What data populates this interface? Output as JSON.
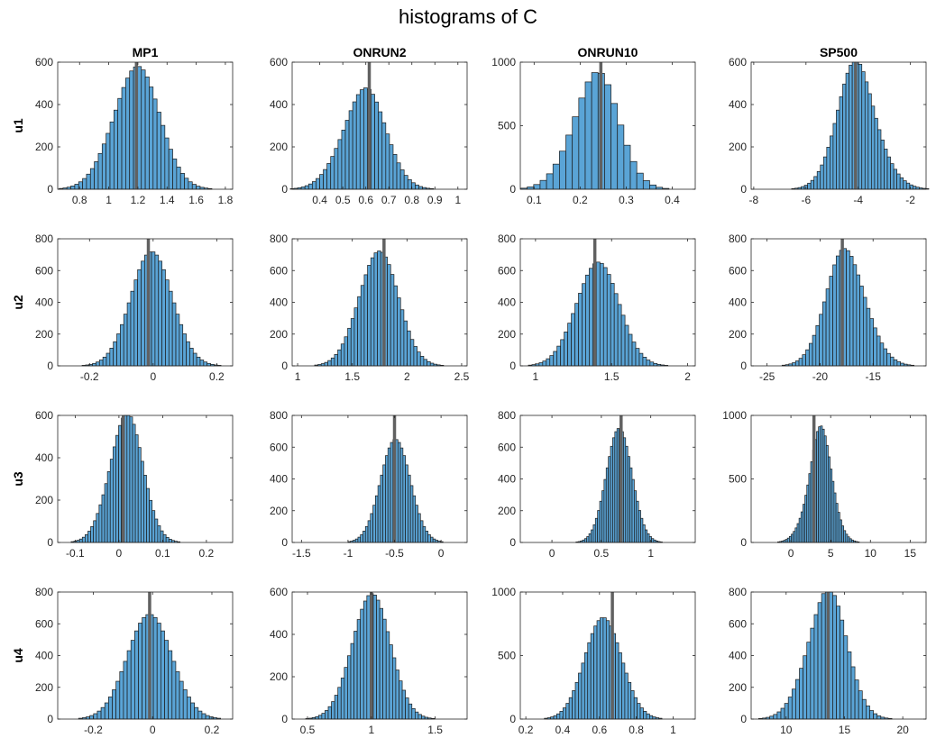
{
  "figure": {
    "title": "histograms of C"
  },
  "chart_data": {
    "type": "bar",
    "title": "histograms of C",
    "columns": [
      "MP1",
      "ONRUN2",
      "ONRUN10",
      "SP500"
    ],
    "rows": [
      "u1",
      "u2",
      "u3",
      "u4"
    ],
    "colors": {
      "bar": "#5aa4d6",
      "edge": "#1b1b1b",
      "marker": "#616161",
      "axis": "#262626"
    },
    "grid": false,
    "panels": [
      {
        "row": "u1",
        "column": "MP1",
        "xlim": [
          0.65,
          1.85
        ],
        "ylim": [
          0,
          600
        ],
        "xticks": [
          0.8,
          1,
          1.2,
          1.4,
          1.6,
          1.8
        ],
        "xticklabels": [
          "0.8",
          "1",
          "1.2",
          "1.4",
          "1.6",
          "1.8"
        ],
        "yticks": [
          0,
          200,
          400,
          600
        ],
        "yticklabels": [
          "0",
          "200",
          "400",
          "600"
        ],
        "mean": 1.17,
        "sd": 0.16,
        "skew": 0.2,
        "peak": 570,
        "bins": 50,
        "marker": 1.19
      },
      {
        "row": "u1",
        "column": "ONRUN2",
        "xlim": [
          0.28,
          1.04
        ],
        "ylim": [
          0,
          600
        ],
        "xticks": [
          0.4,
          0.5,
          0.6,
          0.7,
          0.8,
          0.9,
          1
        ],
        "xticklabels": [
          "0.4",
          "0.5",
          "0.6",
          "0.7",
          "0.8",
          "0.9",
          "1"
        ],
        "yticks": [
          0,
          200,
          400,
          600
        ],
        "yticklabels": [
          "0",
          "200",
          "400",
          "600"
        ],
        "mean": 0.575,
        "sd": 0.095,
        "skew": 0.3,
        "peak": 460,
        "bins": 50,
        "marker": 0.615
      },
      {
        "row": "u1",
        "column": "ONRUN10",
        "xlim": [
          0.07,
          0.45
        ],
        "ylim": [
          0,
          1000
        ],
        "xticks": [
          0.1,
          0.2,
          0.3,
          0.4
        ],
        "xticklabels": [
          "0.1",
          "0.2",
          "0.3",
          "0.4"
        ],
        "yticks": [
          0,
          500,
          1000
        ],
        "yticklabels": [
          "0",
          "500",
          "1000"
        ],
        "mean": 0.225,
        "sd": 0.05,
        "skew": 0.3,
        "peak": 890,
        "bins": 30,
        "marker": 0.245
      },
      {
        "row": "u1",
        "column": "SP500",
        "xlim": [
          -8.1,
          -1.4
        ],
        "ylim": [
          0,
          600
        ],
        "xticks": [
          -8,
          -6,
          -4,
          -2
        ],
        "xticklabels": [
          "-8",
          "-6",
          "-4",
          "-2"
        ],
        "yticks": [
          0,
          200,
          400,
          600
        ],
        "yticklabels": [
          "0",
          "200",
          "400",
          "600"
        ],
        "mean": -3.8,
        "sd": 0.8,
        "skew": -0.5,
        "peak": 555,
        "bins": 55,
        "marker": -4.1
      },
      {
        "row": "u2",
        "column": "MP1",
        "xlim": [
          -0.3,
          0.25
        ],
        "ylim": [
          0,
          800
        ],
        "xticks": [
          -0.2,
          0,
          0.2
        ],
        "xticklabels": [
          "-0.2",
          "0",
          "0.2"
        ],
        "yticks": [
          0,
          200,
          400,
          600,
          800
        ],
        "yticklabels": [
          "0",
          "200",
          "400",
          "600",
          "800"
        ],
        "mean": -0.005,
        "sd": 0.065,
        "skew": 0,
        "peak": 720,
        "bins": 50,
        "marker": -0.015
      },
      {
        "row": "u2",
        "column": "ONRUN2",
        "xlim": [
          0.95,
          2.55
        ],
        "ylim": [
          0,
          800
        ],
        "xticks": [
          1,
          1.5,
          2,
          2.5
        ],
        "xticklabels": [
          "1",
          "1.5",
          "2",
          "2.5"
        ],
        "yticks": [
          0,
          200,
          400,
          600,
          800
        ],
        "yticklabels": [
          "0",
          "200",
          "400",
          "600",
          "800"
        ],
        "mean": 1.73,
        "sd": 0.18,
        "skew": 0.1,
        "peak": 720,
        "bins": 50,
        "marker": 1.79
      },
      {
        "row": "u2",
        "column": "ONRUN10",
        "xlim": [
          0.9,
          2.05
        ],
        "ylim": [
          0,
          800
        ],
        "xticks": [
          1,
          1.5,
          2
        ],
        "xticklabels": [
          "1",
          "1.5",
          "2"
        ],
        "yticks": [
          0,
          200,
          400,
          600,
          800
        ],
        "yticklabels": [
          "0",
          "200",
          "400",
          "600",
          "800"
        ],
        "mean": 1.4,
        "sd": 0.14,
        "skew": 0.1,
        "peak": 650,
        "bins": 50,
        "marker": 1.39
      },
      {
        "row": "u2",
        "column": "SP500",
        "xlim": [
          -26.5,
          -10
        ],
        "ylim": [
          0,
          800
        ],
        "xticks": [
          -25,
          -20,
          -15
        ],
        "xticklabels": [
          "-25",
          "-20",
          "-15"
        ],
        "yticks": [
          0,
          200,
          400,
          600,
          800
        ],
        "yticklabels": [
          "0",
          "200",
          "400",
          "600",
          "800"
        ],
        "mean": -17.2,
        "sd": 1.9,
        "skew": -0.3,
        "peak": 710,
        "bins": 50,
        "marker": -17.9
      },
      {
        "row": "u3",
        "column": "MP1",
        "xlim": [
          -0.14,
          0.26
        ],
        "ylim": [
          0,
          600
        ],
        "xticks": [
          -0.1,
          0,
          0.1,
          0.2
        ],
        "xticklabels": [
          "-0.1",
          "0",
          "0.1",
          "0.2"
        ],
        "yticks": [
          0,
          200,
          400,
          600
        ],
        "yticklabels": [
          "0",
          "200",
          "400",
          "600"
        ],
        "mean": 0.012,
        "sd": 0.038,
        "skew": 0.2,
        "peak": 600,
        "bins": 50,
        "marker": 0.01
      },
      {
        "row": "u3",
        "column": "ONRUN2",
        "xlim": [
          -1.6,
          0.28
        ],
        "ylim": [
          0,
          800
        ],
        "xticks": [
          -1.5,
          -1,
          -0.5,
          0
        ],
        "xticklabels": [
          "-1.5",
          "-1",
          "-0.5",
          "0"
        ],
        "yticks": [
          0,
          200,
          400,
          600,
          800
        ],
        "yticklabels": [
          "0",
          "200",
          "400",
          "600",
          "800"
        ],
        "mean": -0.49,
        "sd": 0.16,
        "skew": 0,
        "peak": 650,
        "bins": 50,
        "marker": -0.5
      },
      {
        "row": "u3",
        "column": "ONRUN10",
        "xlim": [
          -0.32,
          1.45
        ],
        "ylim": [
          0,
          800
        ],
        "xticks": [
          0,
          0.5,
          1
        ],
        "xticklabels": [
          "0",
          "0.5",
          "1"
        ],
        "yticks": [
          0,
          200,
          400,
          600,
          800
        ],
        "yticklabels": [
          "0",
          "200",
          "400",
          "600",
          "800"
        ],
        "mean": 0.68,
        "sd": 0.13,
        "skew": 0,
        "peak": 720,
        "bins": 50,
        "marker": 0.7
      },
      {
        "row": "u3",
        "column": "SP500",
        "xlim": [
          -5,
          17
        ],
        "ylim": [
          0,
          1000
        ],
        "xticks": [
          0,
          5,
          10,
          15
        ],
        "xticklabels": [
          "0",
          "5",
          "10",
          "15"
        ],
        "yticks": [
          0,
          500,
          1000
        ],
        "yticklabels": [
          "0",
          "500",
          "1000"
        ],
        "mean": 3.1,
        "sd": 1.6,
        "skew": 0.6,
        "peak": 810,
        "bins": 55,
        "marker": 2.9
      },
      {
        "row": "u4",
        "column": "MP1",
        "xlim": [
          -0.32,
          0.27
        ],
        "ylim": [
          0,
          800
        ],
        "xticks": [
          -0.2,
          0,
          0.2
        ],
        "xticklabels": [
          "-0.2",
          "0",
          "0.2"
        ],
        "yticks": [
          0,
          200,
          400,
          600,
          800
        ],
        "yticklabels": [
          "0",
          "200",
          "400",
          "600",
          "800"
        ],
        "mean": -0.01,
        "sd": 0.075,
        "skew": 0,
        "peak": 660,
        "bins": 50,
        "marker": -0.01
      },
      {
        "row": "u4",
        "column": "ONRUN2",
        "xlim": [
          0.38,
          1.75
        ],
        "ylim": [
          0,
          600
        ],
        "xticks": [
          0.5,
          1,
          1.5
        ],
        "xticklabels": [
          "0.5",
          "1",
          "1.5"
        ],
        "yticks": [
          0,
          200,
          400,
          600
        ],
        "yticklabels": [
          "0",
          "200",
          "400",
          "600"
        ],
        "mean": 0.99,
        "sd": 0.15,
        "skew": 0.1,
        "peak": 590,
        "bins": 50,
        "marker": 1.0
      },
      {
        "row": "u4",
        "column": "ONRUN10",
        "xlim": [
          0.17,
          1.12
        ],
        "ylim": [
          0,
          1000
        ],
        "xticks": [
          0.2,
          0.4,
          0.6,
          0.8,
          1
        ],
        "xticklabels": [
          "0.2",
          "0.4",
          "0.6",
          "0.8",
          "1"
        ],
        "yticks": [
          0,
          500,
          1000
        ],
        "yticklabels": [
          "0",
          "500",
          "1000"
        ],
        "mean": 0.62,
        "sd": 0.1,
        "skew": 0,
        "peak": 800,
        "bins": 50,
        "marker": 0.67
      },
      {
        "row": "u4",
        "column": "SP500",
        "xlim": [
          7,
          22
        ],
        "ylim": [
          0,
          800
        ],
        "xticks": [
          10,
          15,
          20
        ],
        "xticklabels": [
          "10",
          "15",
          "20"
        ],
        "yticks": [
          0,
          200,
          400,
          600,
          800
        ],
        "yticklabels": [
          "0",
          "200",
          "400",
          "600",
          "800"
        ],
        "mean": 13.2,
        "sd": 1.7,
        "skew": 0.3,
        "peak": 790,
        "bins": 45,
        "marker": 13.6
      }
    ]
  }
}
